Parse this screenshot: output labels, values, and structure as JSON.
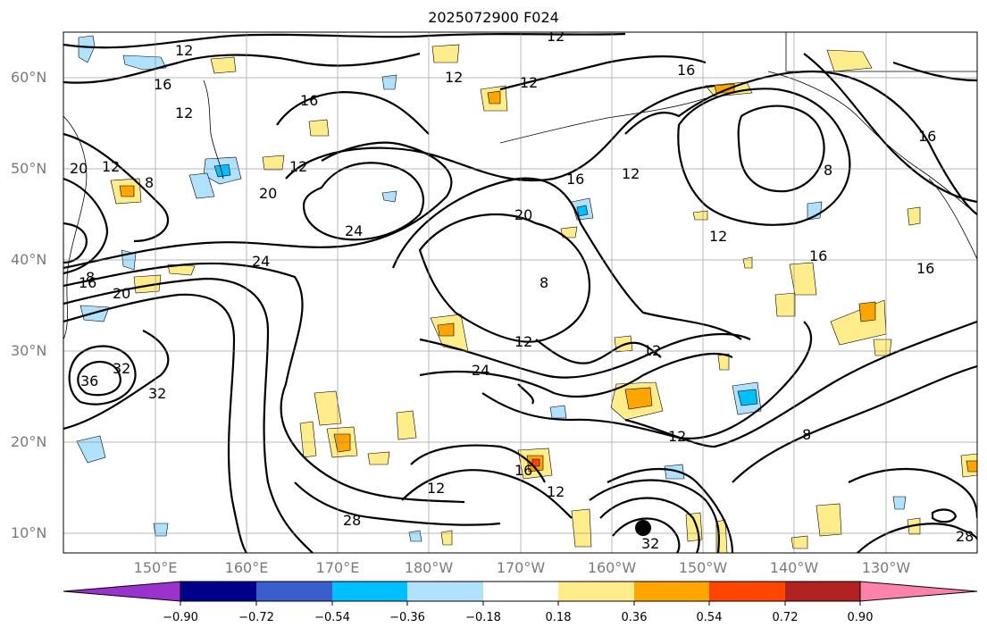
{
  "title": "2025072900 F024",
  "axes": {
    "lat_labels": [
      "60°N",
      "50°N",
      "40°N",
      "30°N",
      "20°N",
      "10°N"
    ],
    "lon_labels": [
      "150°E",
      "160°E",
      "170°E",
      "180°W",
      "170°W",
      "160°W",
      "150°W",
      "140°W",
      "130°W"
    ]
  },
  "contour_labels": [
    "12",
    "12",
    "16",
    "16",
    "12",
    "12",
    "16",
    "12",
    "20",
    "8",
    "20",
    "12",
    "16",
    "24",
    "24",
    "20",
    "16",
    "12",
    "8",
    "12",
    "16",
    "8",
    "8",
    "12",
    "12",
    "24",
    "20",
    "16",
    "36",
    "32",
    "32",
    "28",
    "32",
    "12",
    "16",
    "12",
    "12",
    "16",
    "28",
    "8",
    "12"
  ],
  "colorbar": {
    "ticks": [
      "−0.90",
      "−0.72",
      "−0.54",
      "−0.36",
      "−0.18",
      "0.18",
      "0.36",
      "0.54",
      "0.72",
      "0.90"
    ],
    "colors": [
      "#9a32cd",
      "#00008b",
      "#3a5fcd",
      "#00bfff",
      "#b0e2ff",
      "#ffffff",
      "#ffec8b",
      "#ffa500",
      "#ff4500",
      "#b22222",
      "#ff82ab"
    ]
  }
}
